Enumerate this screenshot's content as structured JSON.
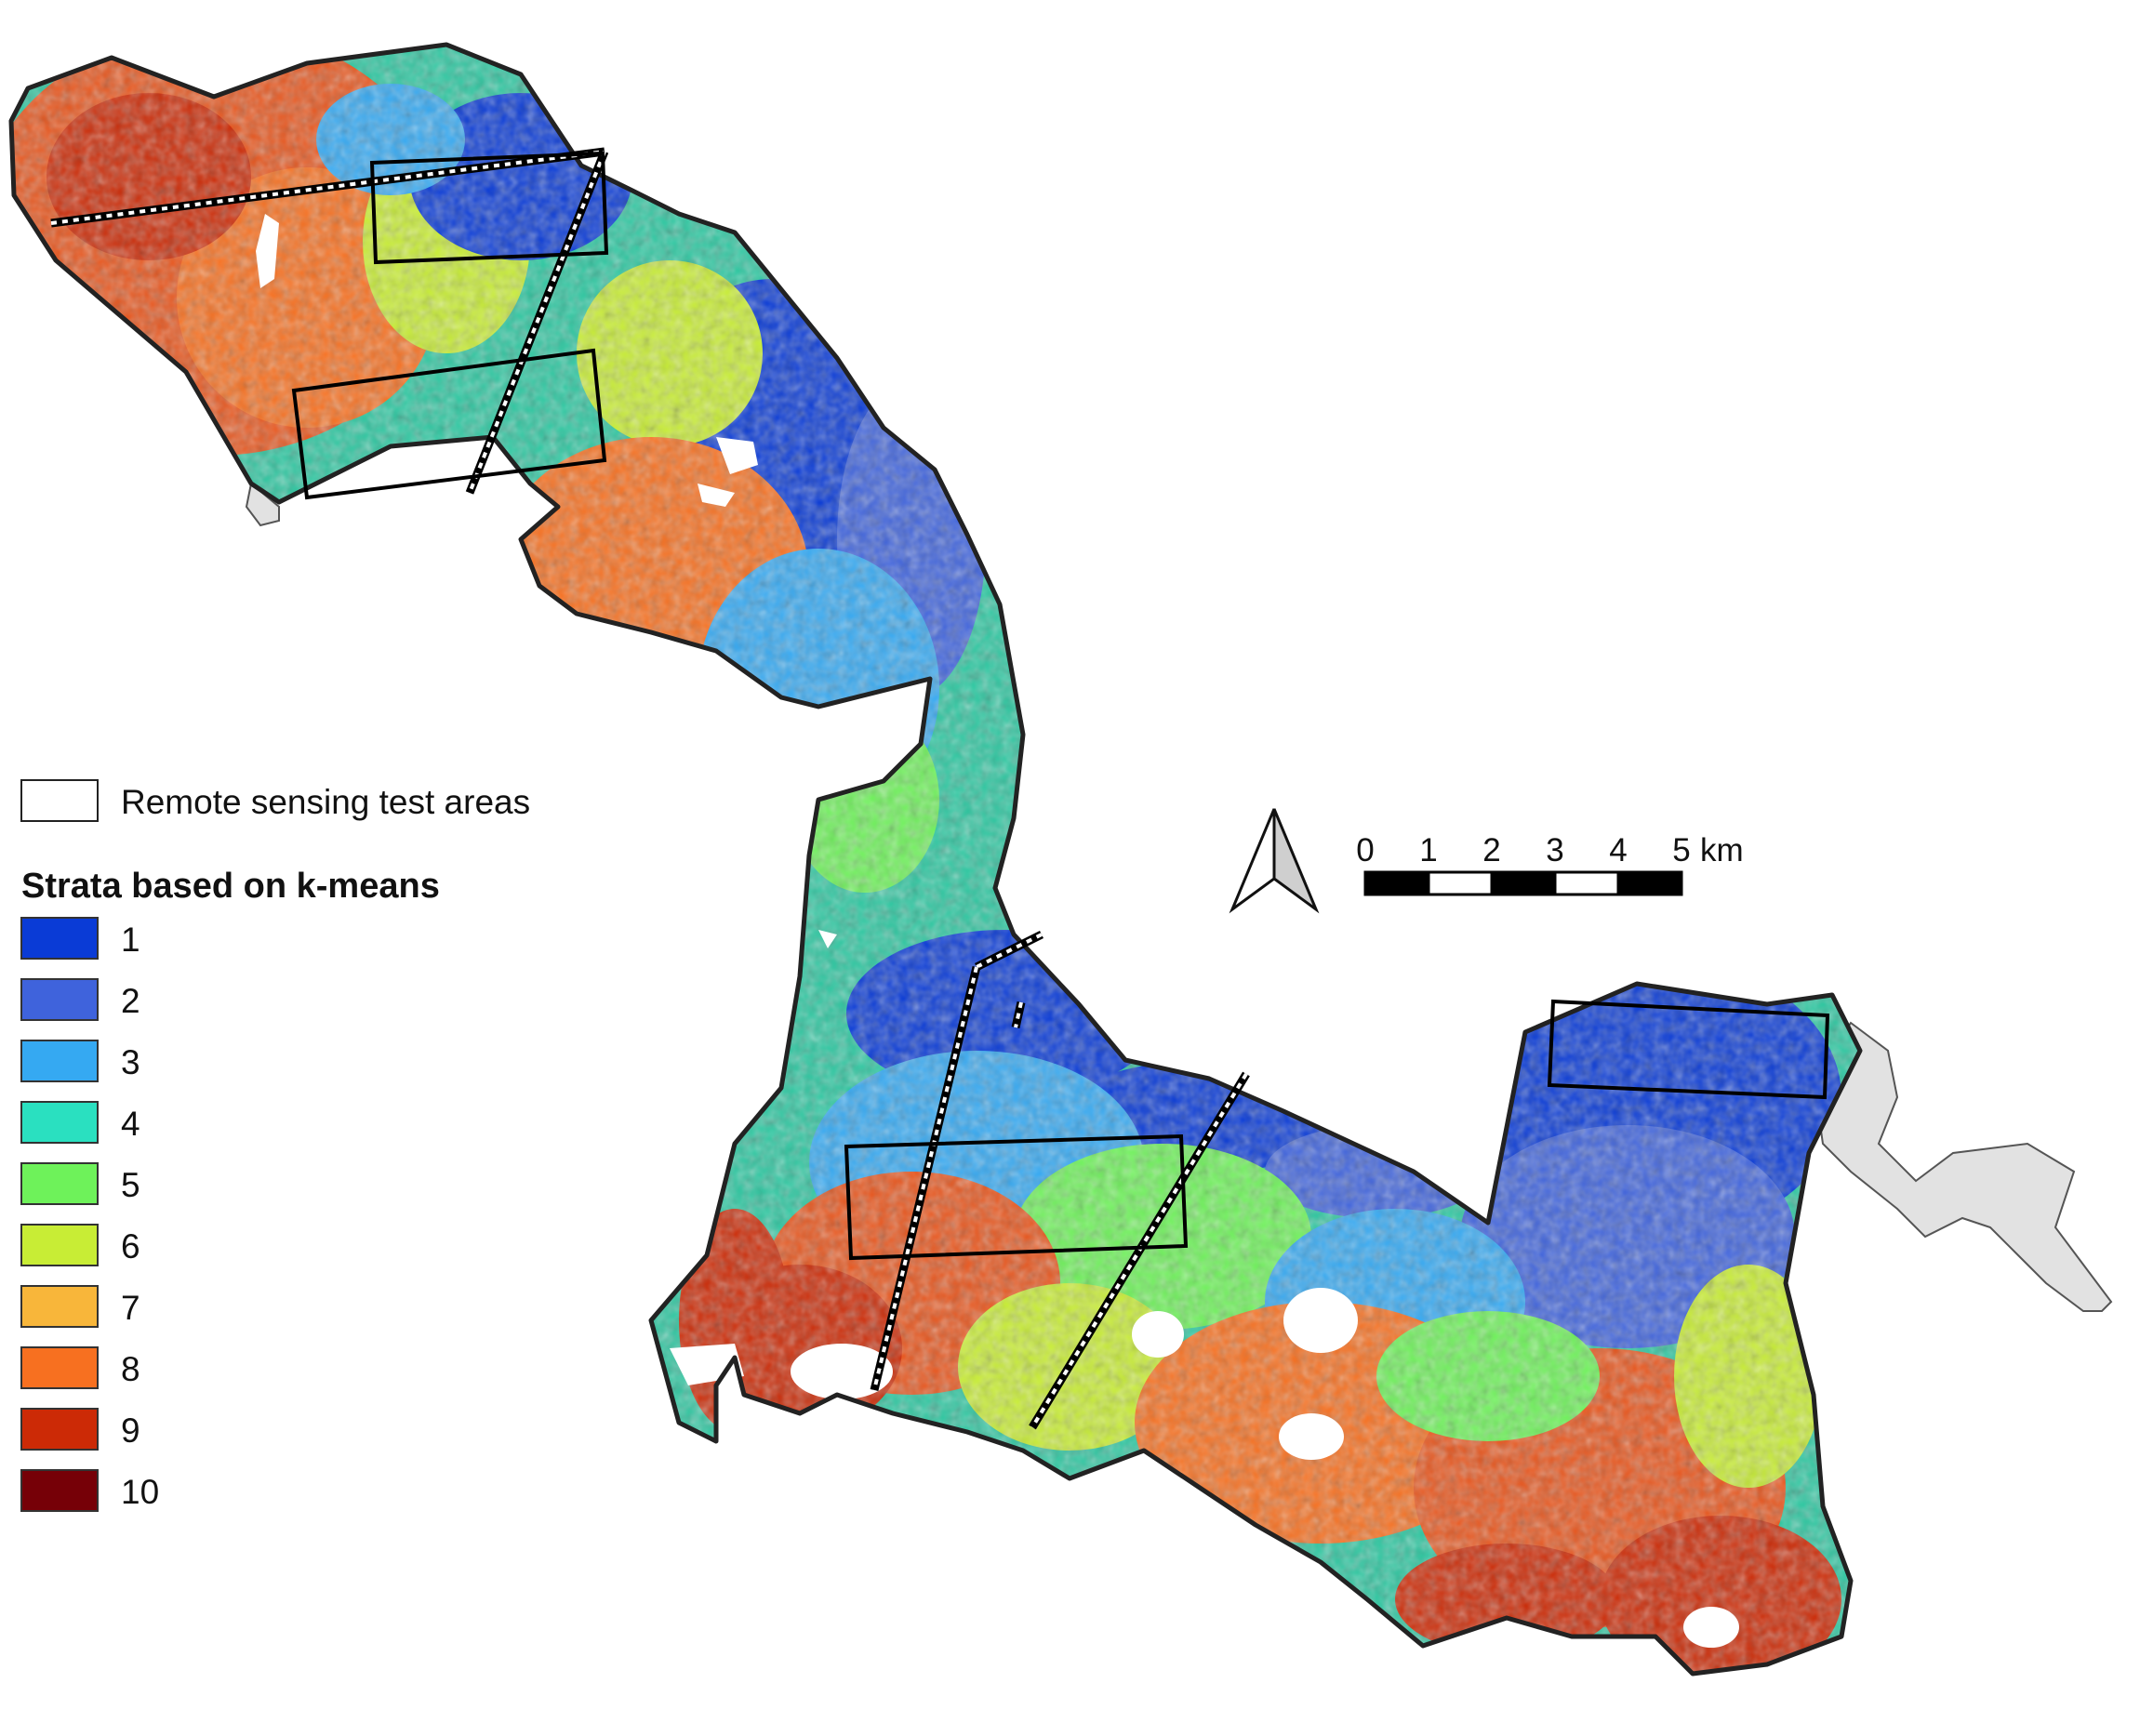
{
  "legend": {
    "test_areas_label": "Remote sensing test areas",
    "strata_title": "Strata based on k-means",
    "strata": [
      {
        "label": "1",
        "color": "#0A3BD6"
      },
      {
        "label": "2",
        "color": "#3F63DC"
      },
      {
        "label": "3",
        "color": "#35A9F2"
      },
      {
        "label": "4",
        "color": "#2AE0C0"
      },
      {
        "label": "5",
        "color": "#6EF25A"
      },
      {
        "label": "6",
        "color": "#C8ED35"
      },
      {
        "label": "7",
        "color": "#F8B63A"
      },
      {
        "label": "8",
        "color": "#F77020"
      },
      {
        "label": "9",
        "color": "#CC2A06"
      },
      {
        "label": "10",
        "color": "#760007"
      }
    ]
  },
  "scale_bar": {
    "ticks": [
      "0",
      "1",
      "2",
      "3",
      "4",
      "5"
    ],
    "unit": "km"
  },
  "colors": {
    "outline": "#222222",
    "outside_area": "#e2e2e2",
    "no_data": "#ffffff",
    "test_area_border": "#000000"
  }
}
